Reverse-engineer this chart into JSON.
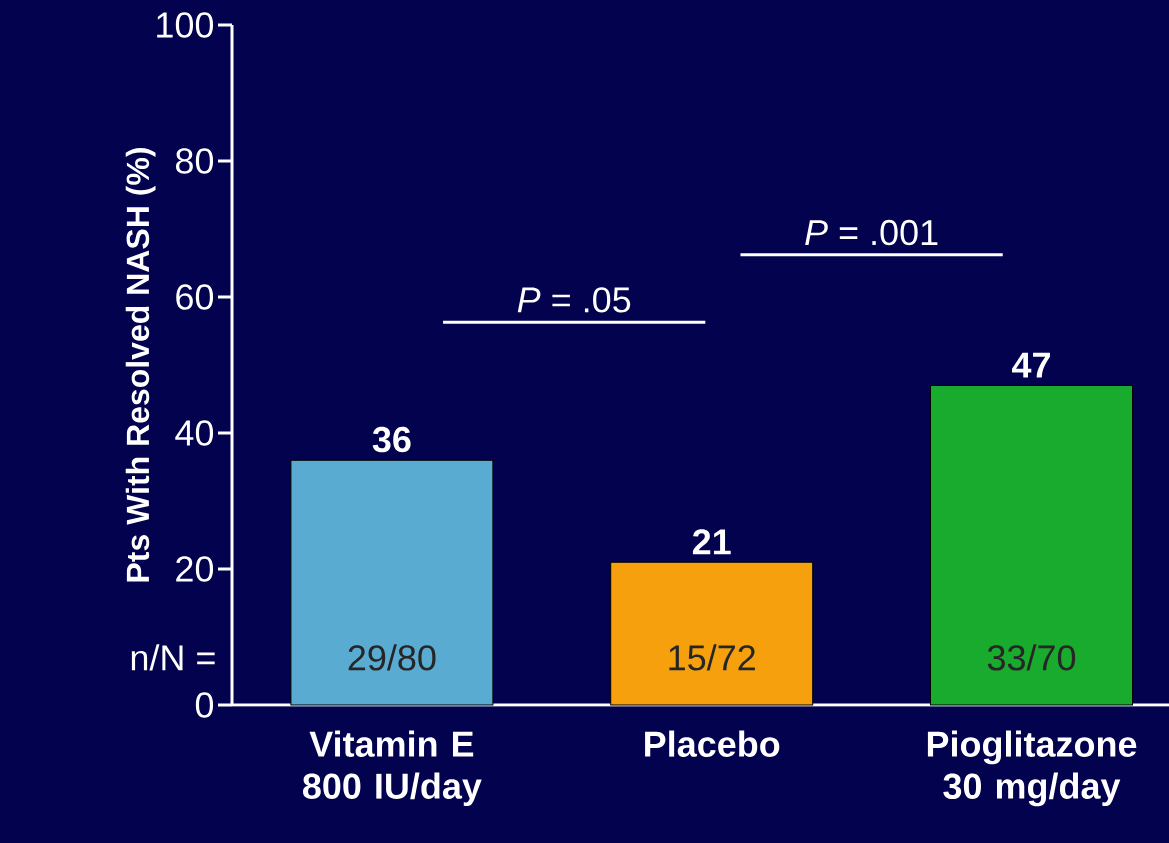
{
  "chart_data": {
    "type": "bar",
    "ylabel": "Pts With Resolved NASH (%)",
    "categories": [
      "Vitamin E 800 IU/day",
      "Placebo",
      "Pioglitazone 30 mg/day"
    ],
    "values": [
      36,
      21,
      47
    ],
    "colors": [
      "#5aabd1",
      "#f5a00c",
      "#18ab2d"
    ],
    "ylim": [
      0,
      100
    ],
    "yticks": [
      0,
      20,
      40,
      60,
      80,
      100
    ],
    "data_labels": true,
    "grid": false,
    "annotations": [
      "n/N =",
      "29/80",
      "15/72",
      "33/70",
      "*P* = .05",
      "*P* = .001"
    ]
  }
}
